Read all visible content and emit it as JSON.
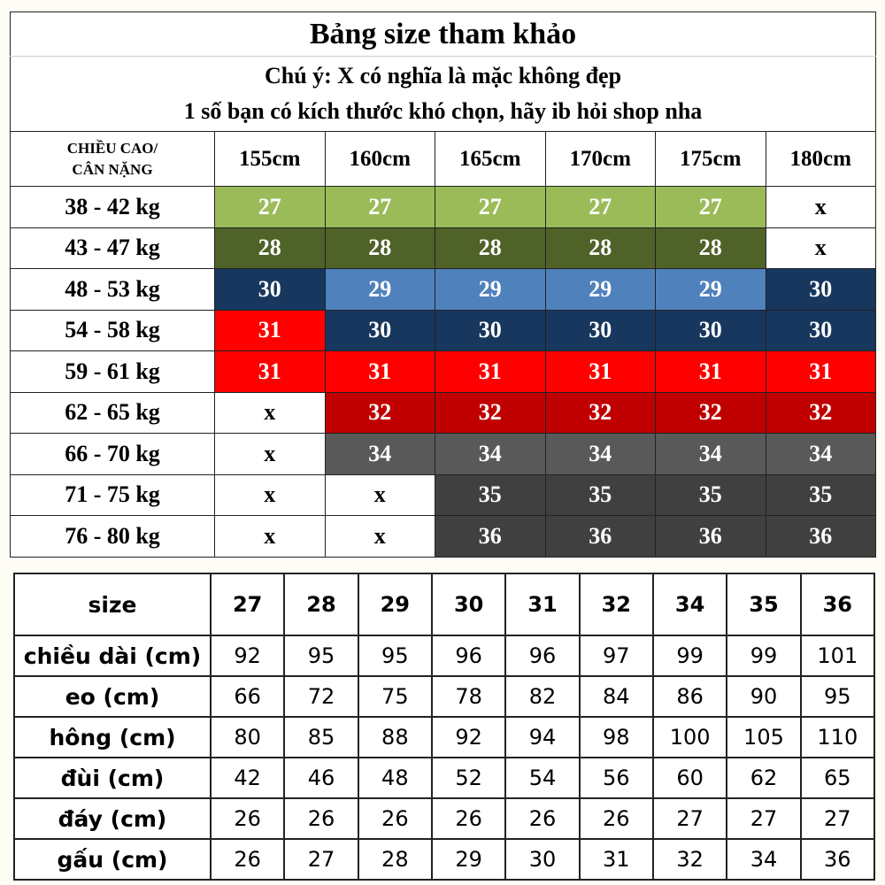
{
  "title": "Bảng size tham khảo",
  "note_line1": "Chú ý: X có nghĩa là mặc không đẹp",
  "note_line2": "1 số bạn có kích thước khó chọn, hãy ib hỏi shop nha",
  "size_grid": {
    "corner_line1": "CHIỀU CAO/",
    "corner_line2": "CÂN NẶNG",
    "heights": [
      "155cm",
      "160cm",
      "165cm",
      "170cm",
      "175cm",
      "180cm"
    ],
    "rows": [
      {
        "weight": "38 - 42 kg",
        "cells": [
          "27",
          "27",
          "27",
          "27",
          "27",
          "x"
        ]
      },
      {
        "weight": "43 - 47 kg",
        "cells": [
          "28",
          "28",
          "28",
          "28",
          "28",
          "x"
        ]
      },
      {
        "weight": "48 - 53 kg",
        "cells": [
          "30",
          "29",
          "29",
          "29",
          "29",
          "30"
        ]
      },
      {
        "weight": "54 - 58 kg",
        "cells": [
          "31",
          "30",
          "30",
          "30",
          "30",
          "30"
        ]
      },
      {
        "weight": "59 - 61 kg",
        "cells": [
          "31",
          "31",
          "31",
          "31",
          "31",
          "31"
        ]
      },
      {
        "weight": "62 - 65 kg",
        "cells": [
          "x",
          "32",
          "32",
          "32",
          "32",
          "32"
        ]
      },
      {
        "weight": "66 - 70 kg",
        "cells": [
          "x",
          "34",
          "34",
          "34",
          "34",
          "34"
        ]
      },
      {
        "weight": "71 - 75 kg",
        "cells": [
          "x",
          "x",
          "35",
          "35",
          "35",
          "35"
        ]
      },
      {
        "weight": "76 - 80 kg",
        "cells": [
          "x",
          "x",
          "36",
          "36",
          "36",
          "36"
        ]
      }
    ],
    "size_colors": {
      "27": "#9bbb59",
      "28": "#4f6228",
      "29": "#4f81bd",
      "30": "#17375e",
      "31": "#ff0000",
      "32": "#c00000",
      "34": "#595959",
      "35": "#404040",
      "36": "#404040",
      "x": "#ffffff"
    }
  },
  "measurements": {
    "header_label": "size",
    "sizes": [
      "27",
      "28",
      "29",
      "30",
      "31",
      "32",
      "34",
      "35",
      "36"
    ],
    "rows": [
      {
        "label": "chiều dài (cm)",
        "values": [
          "92",
          "95",
          "95",
          "96",
          "96",
          "97",
          "99",
          "99",
          "101"
        ]
      },
      {
        "label": "eo (cm)",
        "values": [
          "66",
          "72",
          "75",
          "78",
          "82",
          "84",
          "86",
          "90",
          "95"
        ]
      },
      {
        "label": "hông (cm)",
        "values": [
          "80",
          "85",
          "88",
          "92",
          "94",
          "98",
          "100",
          "105",
          "110"
        ]
      },
      {
        "label": "đùi (cm)",
        "values": [
          "42",
          "46",
          "48",
          "52",
          "54",
          "56",
          "60",
          "62",
          "65"
        ]
      },
      {
        "label": "đáy (cm)",
        "values": [
          "26",
          "26",
          "26",
          "26",
          "26",
          "26",
          "27",
          "27",
          "27"
        ]
      },
      {
        "label": "gấu (cm)",
        "values": [
          "26",
          "27",
          "28",
          "29",
          "30",
          "31",
          "32",
          "34",
          "36"
        ]
      }
    ]
  }
}
